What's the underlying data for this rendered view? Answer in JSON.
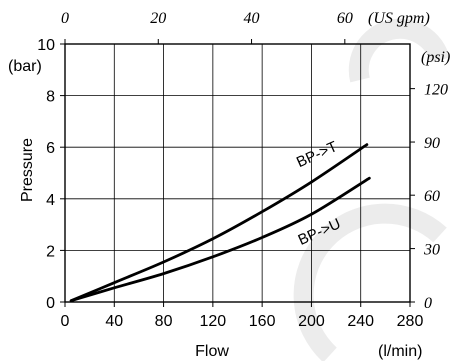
{
  "chart_data": {
    "type": "line",
    "xlabel": "Flow",
    "xunit": "(l/min)",
    "ylabel": "Pressure",
    "yunit": "(bar)",
    "secondary_x_unit": "(US gpm)",
    "secondary_y_unit": "(psi)",
    "xlim": [
      0,
      280
    ],
    "ylim": [
      0,
      10
    ],
    "x_ticks": [
      0,
      40,
      80,
      120,
      160,
      200,
      240,
      280
    ],
    "y_ticks": [
      0,
      2,
      4,
      6,
      8,
      10
    ],
    "top_ticks": [
      "0",
      "20",
      "40",
      "60"
    ],
    "top_ticks_lpm": [
      0,
      75.7,
      151.4,
      227.1
    ],
    "right_ticks": [
      "0",
      "30",
      "60",
      "90",
      "120"
    ],
    "right_ticks_bar": [
      0,
      2.07,
      4.14,
      6.2,
      8.27
    ],
    "grid": true,
    "series": [
      {
        "name": "BP->T",
        "x": [
          5,
          40,
          80,
          120,
          160,
          200,
          245
        ],
        "y": [
          0.05,
          0.75,
          1.55,
          2.45,
          3.5,
          4.65,
          6.1
        ]
      },
      {
        "name": "BP->U",
        "x": [
          5,
          40,
          80,
          120,
          160,
          200,
          247
        ],
        "y": [
          0.05,
          0.55,
          1.1,
          1.75,
          2.5,
          3.4,
          4.8
        ]
      }
    ]
  }
}
